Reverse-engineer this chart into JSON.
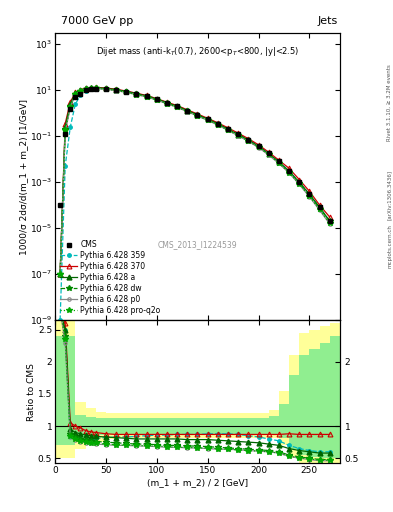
{
  "title_left": "7000 GeV pp",
  "title_right": "Jets",
  "annotation": "Dijet mass (anti-k$_T$(0.7), 2600<p$_T$<800, |y|<2.5)",
  "cms_label": "CMS_2013_I1224539",
  "rivet_label": "Rivet 3.1.10, ≥ 3.2M events",
  "arxiv_label": "[arXiv:1306.3436]",
  "mcplots_label": "mcplots.cern.ch",
  "ylabel_main": "1000/σ 2dσ/d(m_1 + m_2) [1/GeV]",
  "ylabel_ratio": "Ratio to CMS",
  "xlabel": "(m_1 + m_2) / 2 [GeV]",
  "xlim": [
    0,
    280
  ],
  "ylim_main": [
    1e-09,
    3000.0
  ],
  "ylim_ratio": [
    0.42,
    2.65
  ],
  "x_data": [
    5,
    10,
    15,
    20,
    25,
    30,
    35,
    40,
    50,
    60,
    70,
    80,
    90,
    100,
    110,
    120,
    130,
    140,
    150,
    160,
    170,
    180,
    190,
    200,
    210,
    220,
    230,
    240,
    250,
    260,
    270
  ],
  "cms_y": [
    0.0001,
    0.12,
    1.5,
    5.0,
    7.0,
    10.0,
    11.0,
    11.5,
    11.0,
    10.0,
    8.5,
    7.0,
    5.5,
    4.0,
    2.8,
    2.0,
    1.3,
    0.85,
    0.55,
    0.34,
    0.2,
    0.12,
    0.07,
    0.038,
    0.018,
    0.008,
    0.003,
    0.001,
    0.0003,
    8e-05,
    2e-05
  ],
  "py359_y": [
    1e-09,
    0.005,
    0.25,
    2.5,
    6.0,
    9.5,
    11.5,
    12.0,
    11.5,
    10.5,
    9.0,
    7.2,
    5.8,
    4.2,
    2.9,
    2.1,
    1.35,
    0.88,
    0.57,
    0.36,
    0.21,
    0.125,
    0.072,
    0.038,
    0.018,
    0.008,
    0.003,
    0.001,
    0.0003,
    8e-05,
    2e-05
  ],
  "py370_y": [
    1e-07,
    0.35,
    3.0,
    8.0,
    10.5,
    12.5,
    13.0,
    13.2,
    12.5,
    11.0,
    9.2,
    7.4,
    5.9,
    4.3,
    3.0,
    2.15,
    1.4,
    0.92,
    0.6,
    0.38,
    0.23,
    0.135,
    0.078,
    0.042,
    0.02,
    0.009,
    0.004,
    0.0013,
    0.0004,
    0.0001,
    3e-05
  ],
  "pya_y": [
    1e-07,
    0.25,
    2.5,
    7.5,
    10.0,
    12.0,
    12.5,
    12.8,
    12.0,
    10.5,
    8.8,
    7.0,
    5.6,
    4.1,
    2.85,
    2.0,
    1.3,
    0.85,
    0.55,
    0.345,
    0.2,
    0.118,
    0.068,
    0.036,
    0.017,
    0.0075,
    0.003,
    0.001,
    0.0003,
    8e-05,
    2e-05
  ],
  "pydw_y": [
    1e-07,
    0.2,
    2.0,
    7.0,
    9.5,
    11.5,
    12.0,
    12.3,
    11.5,
    10.0,
    8.4,
    6.7,
    5.3,
    3.85,
    2.65,
    1.88,
    1.22,
    0.79,
    0.51,
    0.32,
    0.188,
    0.11,
    0.063,
    0.033,
    0.016,
    0.007,
    0.0027,
    0.0009,
    0.00025,
    7e-05,
    2e-05
  ],
  "pyp0_y": [
    1e-07,
    0.15,
    1.8,
    6.5,
    9.2,
    11.0,
    11.5,
    11.8,
    11.0,
    9.6,
    8.0,
    6.4,
    5.1,
    3.7,
    2.55,
    1.8,
    1.16,
    0.75,
    0.485,
    0.305,
    0.178,
    0.104,
    0.06,
    0.032,
    0.015,
    0.0065,
    0.0025,
    0.0008,
    0.00023,
    6e-05,
    1.5e-05
  ],
  "pyproq2o_y": [
    1e-07,
    0.18,
    1.9,
    6.8,
    9.3,
    11.2,
    11.7,
    12.0,
    11.2,
    9.8,
    8.1,
    6.5,
    5.2,
    3.8,
    2.6,
    1.84,
    1.19,
    0.77,
    0.5,
    0.313,
    0.183,
    0.107,
    0.062,
    0.033,
    0.016,
    0.0068,
    0.0026,
    0.00085,
    0.00024,
    6.5e-05,
    1.6e-05
  ],
  "ratio_py359": [
    2.8,
    2.5,
    0.85,
    0.82,
    0.8,
    0.79,
    0.8,
    0.81,
    0.82,
    0.83,
    0.83,
    0.84,
    0.85,
    0.86,
    0.86,
    0.87,
    0.87,
    0.87,
    0.88,
    0.88,
    0.88,
    0.87,
    0.85,
    0.83,
    0.8,
    0.77,
    0.7,
    0.65,
    0.62,
    0.6,
    0.6
  ],
  "ratio_py370": [
    2.8,
    2.6,
    1.05,
    1.0,
    0.97,
    0.93,
    0.91,
    0.9,
    0.88,
    0.87,
    0.87,
    0.87,
    0.87,
    0.87,
    0.87,
    0.87,
    0.87,
    0.87,
    0.87,
    0.87,
    0.87,
    0.87,
    0.87,
    0.87,
    0.87,
    0.87,
    0.88,
    0.87,
    0.87,
    0.87,
    0.87
  ],
  "ratio_pya": [
    2.8,
    2.5,
    0.95,
    0.9,
    0.88,
    0.86,
    0.85,
    0.84,
    0.83,
    0.82,
    0.81,
    0.8,
    0.8,
    0.8,
    0.8,
    0.8,
    0.79,
    0.79,
    0.79,
    0.78,
    0.77,
    0.76,
    0.75,
    0.74,
    0.72,
    0.7,
    0.65,
    0.62,
    0.6,
    0.58,
    0.58
  ],
  "ratio_pydw": [
    2.8,
    2.4,
    0.88,
    0.83,
    0.8,
    0.78,
    0.77,
    0.76,
    0.75,
    0.74,
    0.73,
    0.72,
    0.72,
    0.71,
    0.7,
    0.7,
    0.69,
    0.69,
    0.68,
    0.67,
    0.66,
    0.65,
    0.64,
    0.63,
    0.62,
    0.6,
    0.55,
    0.52,
    0.5,
    0.48,
    0.48
  ],
  "ratio_pyp0": [
    2.8,
    2.3,
    0.83,
    0.78,
    0.76,
    0.74,
    0.73,
    0.72,
    0.71,
    0.7,
    0.7,
    0.69,
    0.69,
    0.68,
    0.67,
    0.67,
    0.66,
    0.66,
    0.65,
    0.64,
    0.64,
    0.63,
    0.62,
    0.61,
    0.6,
    0.58,
    0.53,
    0.5,
    0.48,
    0.46,
    0.46
  ],
  "ratio_pyproq2o": [
    2.8,
    2.35,
    0.85,
    0.8,
    0.77,
    0.75,
    0.74,
    0.73,
    0.72,
    0.71,
    0.7,
    0.7,
    0.69,
    0.69,
    0.68,
    0.67,
    0.67,
    0.66,
    0.66,
    0.65,
    0.64,
    0.63,
    0.62,
    0.61,
    0.6,
    0.58,
    0.53,
    0.51,
    0.49,
    0.47,
    0.47
  ],
  "band_x": [
    0,
    10,
    20,
    30,
    40,
    50,
    60,
    70,
    80,
    90,
    100,
    110,
    120,
    130,
    140,
    150,
    160,
    170,
    180,
    190,
    200,
    210,
    220,
    230,
    240,
    250,
    260,
    270,
    280
  ],
  "band_green_lo": [
    0.7,
    0.7,
    0.82,
    0.84,
    0.86,
    0.87,
    0.88,
    0.88,
    0.88,
    0.88,
    0.88,
    0.88,
    0.88,
    0.88,
    0.88,
    0.88,
    0.88,
    0.88,
    0.88,
    0.88,
    0.88,
    0.88,
    0.82,
    0.65,
    0.55,
    0.52,
    0.5,
    0.5,
    0.5
  ],
  "band_green_hi": [
    2.4,
    2.4,
    1.18,
    1.14,
    1.12,
    1.12,
    1.12,
    1.12,
    1.12,
    1.12,
    1.12,
    1.12,
    1.12,
    1.12,
    1.12,
    1.12,
    1.12,
    1.12,
    1.12,
    1.12,
    1.12,
    1.15,
    1.35,
    1.8,
    2.1,
    2.2,
    2.3,
    2.4,
    2.4
  ],
  "band_yellow_lo": [
    0.5,
    0.5,
    0.65,
    0.72,
    0.76,
    0.8,
    0.82,
    0.82,
    0.82,
    0.82,
    0.82,
    0.82,
    0.82,
    0.82,
    0.82,
    0.82,
    0.82,
    0.82,
    0.82,
    0.82,
    0.82,
    0.82,
    0.7,
    0.5,
    0.43,
    0.42,
    0.42,
    0.42,
    0.42
  ],
  "band_yellow_hi": [
    2.7,
    2.7,
    1.38,
    1.28,
    1.22,
    1.2,
    1.2,
    1.2,
    1.2,
    1.2,
    1.2,
    1.2,
    1.2,
    1.2,
    1.2,
    1.2,
    1.2,
    1.2,
    1.2,
    1.2,
    1.2,
    1.25,
    1.55,
    2.1,
    2.45,
    2.5,
    2.55,
    2.6,
    2.65
  ],
  "color_cms": "#000000",
  "color_py359": "#00BBBB",
  "color_py370": "#CC0000",
  "color_pya": "#006600",
  "color_pydw": "#008800",
  "color_pyp0": "#888888",
  "color_pyproq2o": "#00AA00",
  "color_band_green": "#90EE90",
  "color_band_yellow": "#FFFF99"
}
